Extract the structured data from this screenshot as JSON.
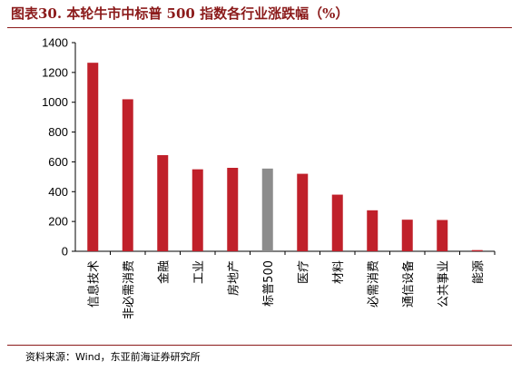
{
  "title": "图表30.  本轮牛市中标普 500 指数各行业涨跌幅（%）",
  "source": "资料来源：Wind，东亚前海证券研究所",
  "colors": {
    "accent": "#c0202a",
    "highlight": "#8c8c8c",
    "title": "#8b1a1a"
  },
  "chart_data": {
    "type": "bar",
    "categories": [
      "信息技术",
      "非必需消费",
      "金融",
      "工业",
      "房地产",
      "标普500",
      "医疗",
      "材料",
      "必需消费",
      "通信设备",
      "公共事业",
      "能源"
    ],
    "values": [
      1265,
      1020,
      645,
      550,
      560,
      555,
      520,
      380,
      275,
      212,
      210,
      8
    ],
    "highlight_category": "标普500",
    "ylim": [
      0,
      1400
    ],
    "yticks": [
      0,
      200,
      400,
      600,
      800,
      1000,
      1200,
      1400
    ],
    "grid": false,
    "xlabel": "",
    "ylabel": ""
  }
}
